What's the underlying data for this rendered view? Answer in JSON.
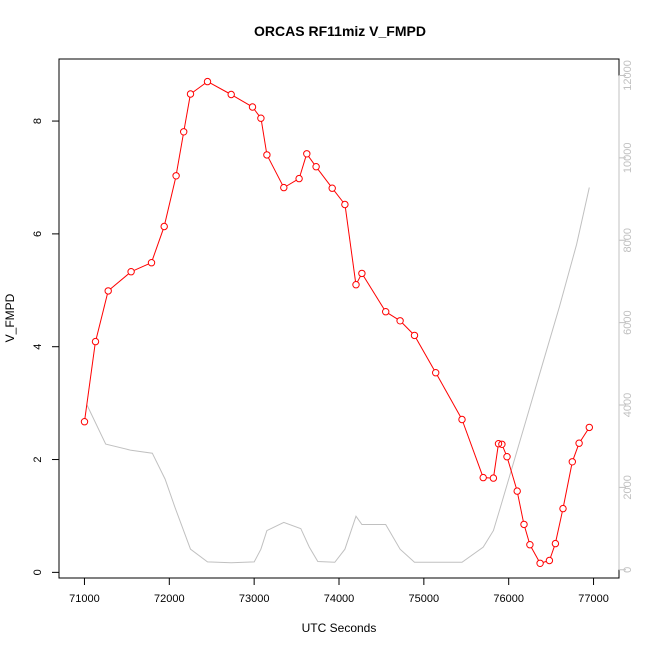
{
  "chart_data": {
    "type": "line",
    "title": "ORCAS RF11miz V_FMPD",
    "xlabel": "UTC Seconds",
    "ylabel": "V_FMPD",
    "xlim": [
      70700,
      77300
    ],
    "ylim": [
      -0.1,
      9.1
    ],
    "y2lim": [
      -200,
      12400
    ],
    "xticks": [
      71000,
      72000,
      73000,
      74000,
      75000,
      76000,
      77000
    ],
    "yticks": [
      0,
      2,
      4,
      6,
      8
    ],
    "y2ticks": [
      0,
      2000,
      4000,
      6000,
      8000,
      10000,
      12000
    ],
    "grid": false,
    "series": [
      {
        "role": "primary",
        "color": "#ff0000",
        "marker": "open-circle",
        "x": [
          71000,
          71130,
          71280,
          71550,
          71790,
          71940,
          72080,
          72170,
          72250,
          72450,
          72730,
          72980,
          73080,
          73150,
          73350,
          73530,
          73620,
          73730,
          73920,
          74070,
          74200,
          74270,
          74550,
          74720,
          74890,
          75140,
          75450,
          75700,
          75820,
          75880,
          75920,
          75980,
          76100,
          76180,
          76250,
          76370,
          76480,
          76550,
          76640,
          76750,
          76830,
          76950
        ],
        "y": [
          2.67,
          4.09,
          4.99,
          5.33,
          5.49,
          6.13,
          7.03,
          7.81,
          8.48,
          8.7,
          8.47,
          8.25,
          8.05,
          7.4,
          6.82,
          6.98,
          7.42,
          7.19,
          6.81,
          6.52,
          5.1,
          5.3,
          4.62,
          4.46,
          4.2,
          3.54,
          2.71,
          1.68,
          1.67,
          2.28,
          2.27,
          2.05,
          1.44,
          0.85,
          0.49,
          0.16,
          0.21,
          0.51,
          1.13,
          1.96,
          2.29,
          2.57
        ]
      },
      {
        "role": "secondary",
        "color": "#c0c0c0",
        "marker": "none",
        "x": [
          71030,
          71250,
          71550,
          71800,
          71950,
          72070,
          72250,
          72450,
          72730,
          73000,
          73080,
          73150,
          73350,
          73550,
          73650,
          73750,
          73950,
          74070,
          74200,
          74270,
          74550,
          74720,
          74890,
          75140,
          75450,
          75700,
          75820,
          75900,
          76000,
          76200,
          76400,
          76600,
          76800,
          76950
        ],
        "y": [
          4000,
          3050,
          2900,
          2830,
          2200,
          1500,
          500,
          190,
          170,
          190,
          500,
          950,
          1150,
          1000,
          550,
          200,
          180,
          500,
          1300,
          1100,
          1100,
          500,
          180,
          180,
          180,
          550,
          950,
          1500,
          2200,
          3600,
          5000,
          6400,
          7900,
          9280
        ]
      }
    ]
  }
}
